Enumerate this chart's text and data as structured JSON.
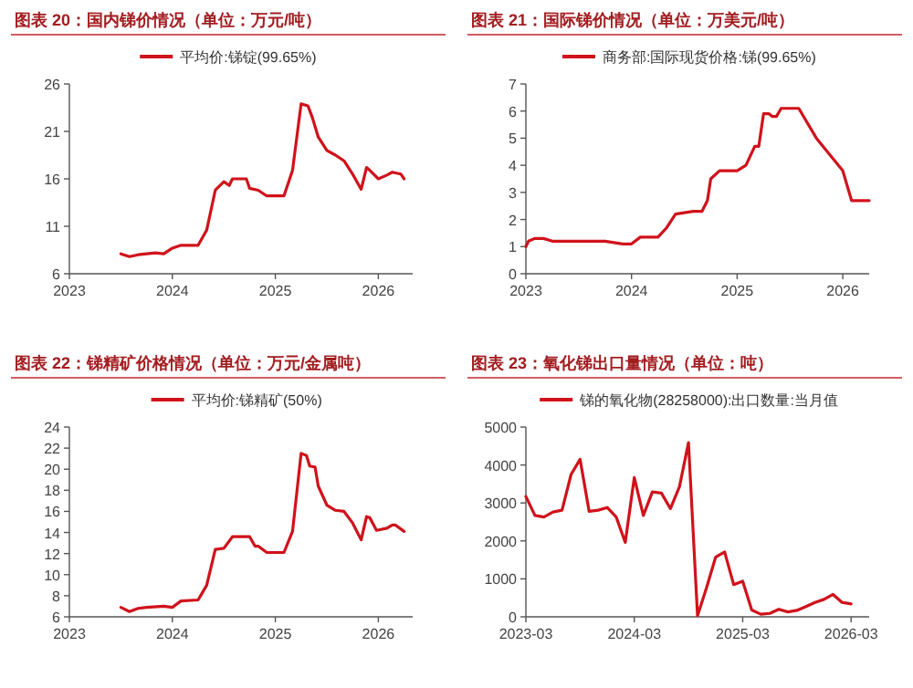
{
  "chart_data": [
    {
      "type": "line",
      "title": "图表 20：国内锑价情况（单位：万元/吨）",
      "legend": "top",
      "grid": false,
      "series": [
        {
          "name": "平均价:锑锭(99.65%)",
          "color": "#d0121b",
          "x": [
            "2023-07",
            "2023-08",
            "2023-09",
            "2023-11",
            "2023-12",
            "2024-01",
            "2024-02",
            "2024-04",
            "2024-05",
            "2024-06",
            "2024-07",
            "2024-07-20",
            "2024-08",
            "2024-09-20",
            "2024-10",
            "2024-11",
            "2024-12",
            "2025-02",
            "2025-03",
            "2025-04",
            "2025-04-25",
            "2025-05-10",
            "2025-06",
            "2025-07",
            "2025-08",
            "2025-09",
            "2025-10",
            "2025-11",
            "2025-11-20",
            "2025-12",
            "2026-01",
            "2026-02",
            "2026-02-20",
            "2026-03-20",
            "2026-04"
          ],
          "values": [
            8.1,
            7.8,
            8.0,
            8.2,
            8.1,
            8.7,
            9.0,
            9.0,
            10.6,
            14.8,
            15.7,
            15.3,
            16.0,
            16.0,
            15.0,
            14.8,
            14.2,
            14.2,
            16.9,
            23.9,
            23.7,
            22.5,
            20.4,
            19.0,
            18.5,
            17.9,
            16.5,
            14.9,
            17.2,
            16.9,
            16.0,
            16.4,
            16.7,
            16.5,
            16.0
          ]
        }
      ],
      "xlim": [
        "2023-01",
        "2026-05"
      ],
      "xticks": [
        "2023",
        "2024",
        "2025",
        "2026"
      ],
      "ylim": [
        6,
        26
      ],
      "yticks": [
        6,
        11,
        16,
        21,
        26
      ]
    },
    {
      "type": "line",
      "title": "图表 21：国际锑价情况（单位：万美元/吨）",
      "legend": "top",
      "grid": false,
      "series": [
        {
          "name": "商务部:国际现货价格:锑(99.65%)",
          "color": "#d0121b",
          "x": [
            "2023-01",
            "2023-01-10",
            "2023-02",
            "2023-03",
            "2023-04",
            "2023-06",
            "2023-10",
            "2023-12",
            "2024-01",
            "2024-02",
            "2024-04",
            "2024-05",
            "2024-06",
            "2024-08",
            "2024-09",
            "2024-09-20",
            "2024-10",
            "2024-11",
            "2025-01",
            "2025-02",
            "2025-03",
            "2025-03-15",
            "2025-04",
            "2025-04-20",
            "2025-05",
            "2025-05-15",
            "2025-06",
            "2025-08",
            "2025-10",
            "2026-01",
            "2026-02",
            "2026-03",
            "2026-04"
          ],
          "values": [
            1.0,
            1.2,
            1.3,
            1.3,
            1.2,
            1.2,
            1.2,
            1.1,
            1.1,
            1.35,
            1.35,
            1.7,
            2.2,
            2.3,
            2.3,
            2.7,
            3.5,
            3.8,
            3.8,
            4.0,
            4.7,
            4.7,
            5.9,
            5.9,
            5.8,
            5.8,
            6.1,
            6.1,
            5.0,
            3.8,
            2.7,
            2.7,
            2.7
          ]
        }
      ],
      "xlim": [
        "2023-01",
        "2026-04"
      ],
      "xticks": [
        "2023",
        "2024",
        "2025",
        "2026"
      ],
      "ylim": [
        0,
        7
      ],
      "yticks": [
        0,
        1,
        2,
        3,
        4,
        5,
        6,
        7
      ]
    },
    {
      "type": "line",
      "title": "图表 22：锑精矿价格情况（单位：万元/金属吨）",
      "legend": "top",
      "grid": false,
      "series": [
        {
          "name": "平均价:锑精矿(50%)",
          "color": "#d0121b",
          "x": [
            "2023-07",
            "2023-08",
            "2023-09",
            "2023-10",
            "2023-12",
            "2024-01",
            "2024-02",
            "2024-04",
            "2024-05",
            "2024-06",
            "2024-07",
            "2024-08",
            "2024-10",
            "2024-10-20",
            "2024-11",
            "2024-12",
            "2025-02",
            "2025-03",
            "2025-04",
            "2025-04-20",
            "2025-05",
            "2025-05-20",
            "2025-06",
            "2025-07",
            "2025-08",
            "2025-09",
            "2025-10",
            "2025-11",
            "2025-11-20",
            "2025-12",
            "2025-12-25",
            "2026-02",
            "2026-02-20",
            "2026-03",
            "2026-04"
          ],
          "values": [
            6.9,
            6.5,
            6.8,
            6.9,
            7.0,
            6.9,
            7.5,
            7.6,
            9.0,
            12.4,
            12.5,
            13.6,
            13.6,
            12.7,
            12.7,
            12.1,
            12.1,
            14.1,
            21.5,
            21.3,
            20.3,
            20.2,
            18.4,
            16.6,
            16.1,
            16.0,
            14.9,
            13.3,
            15.5,
            15.4,
            14.2,
            14.4,
            14.7,
            14.7,
            14.1
          ]
        }
      ],
      "xlim": [
        "2023-01",
        "2026-05"
      ],
      "xticks": [
        "2023",
        "2024",
        "2025",
        "2026"
      ],
      "ylim": [
        6,
        24
      ],
      "yticks": [
        6,
        8,
        10,
        12,
        14,
        16,
        18,
        20,
        22,
        24
      ]
    },
    {
      "type": "line",
      "title": "图表 23：氧化锑出口量情况（单位：吨）",
      "legend": "top",
      "grid": false,
      "series": [
        {
          "name": "锑的氧化物(28258000):出口数量:当月值",
          "color": "#d0121b",
          "x": [
            "2023-03",
            "2023-04",
            "2023-05",
            "2023-06",
            "2023-07",
            "2023-08",
            "2023-09",
            "2023-10",
            "2023-11",
            "2023-12",
            "2024-01",
            "2024-02",
            "2024-03",
            "2024-04",
            "2024-05",
            "2024-06",
            "2024-07",
            "2024-08",
            "2024-09",
            "2024-10",
            "2024-11",
            "2024-12",
            "2025-01",
            "2025-02",
            "2025-03",
            "2025-04",
            "2025-05",
            "2025-06",
            "2025-07",
            "2025-08",
            "2025-09",
            "2025-10",
            "2025-11",
            "2025-12",
            "2026-01",
            "2026-02",
            "2026-03"
          ],
          "values": [
            3170,
            2670,
            2630,
            2760,
            2810,
            3750,
            4150,
            2780,
            2810,
            2880,
            2630,
            1960,
            3670,
            2670,
            3290,
            3260,
            2850,
            3430,
            4590,
            30,
            770,
            1570,
            1710,
            850,
            940,
            180,
            70,
            90,
            200,
            130,
            170,
            270,
            380,
            460,
            590,
            380,
            340
          ]
        }
      ],
      "xlim": [
        "2023-03",
        "2026-05"
      ],
      "xticks": [
        "2023-03",
        "2024-03",
        "2025-03",
        "2026-03"
      ],
      "ylim": [
        0,
        5000
      ],
      "yticks": [
        0,
        1000,
        2000,
        3000,
        4000,
        5000
      ]
    }
  ]
}
